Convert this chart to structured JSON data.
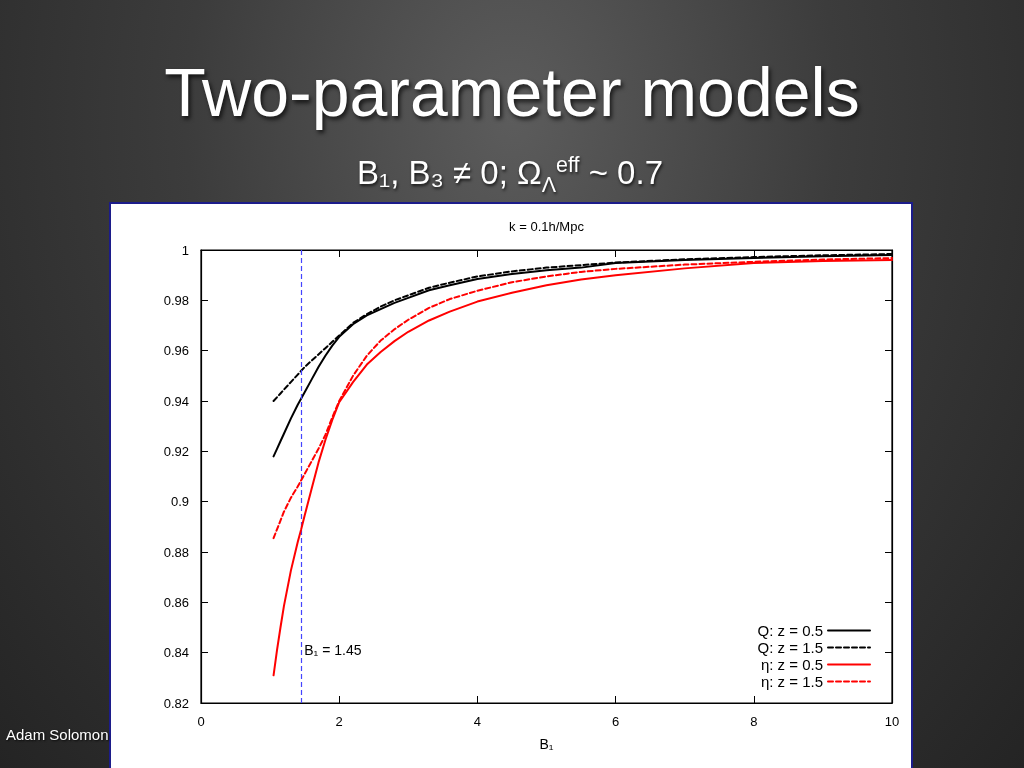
{
  "chart_data": {
    "type": "line",
    "title": "Two-parameter models",
    "subtitle": "B₁, B₃ ≠ 0; Ω$_{Λ}$$^{eff}$ ~ 0.7",
    "xlabel": "B₁",
    "annotations": [
      "k = 0.1h/Mpc",
      "Adam Solomon"
    ],
    "x": [
      1.05,
      1.1,
      1.15,
      1.2,
      1.3,
      1.4,
      1.45,
      1.5,
      1.6,
      1.7,
      1.8,
      1.9,
      2,
      2.2,
      2.4,
      2.6,
      2.8,
      3,
      3.3,
      3.6,
      4,
      4.5,
      5,
      5.5,
      6,
      7,
      8,
      9,
      10
    ],
    "series": [
      {
        "name": "Q: z = 0.5",
        "color": "#000000",
        "line_style": "solid",
        "values": [
          0.918,
          0.921,
          0.924,
          0.927,
          0.933,
          0.9385,
          0.941,
          0.9435,
          0.9485,
          0.9535,
          0.958,
          0.962,
          0.9655,
          0.9705,
          0.974,
          0.9765,
          0.979,
          0.981,
          0.984,
          0.986,
          0.9885,
          0.9905,
          0.992,
          0.993,
          0.9948,
          0.996,
          0.9968,
          0.9975,
          0.998
        ]
      },
      {
        "name": "Q: z = 1.5",
        "color": "#000000",
        "line_style": "dashed",
        "values": [
          0.94,
          0.9415,
          0.943,
          0.9445,
          0.9475,
          0.9505,
          0.952,
          0.9535,
          0.956,
          0.9585,
          0.961,
          0.9635,
          0.966,
          0.971,
          0.9745,
          0.9775,
          0.98,
          0.982,
          0.985,
          0.987,
          0.9895,
          0.9915,
          0.993,
          0.994,
          0.995,
          0.9963,
          0.9972,
          0.9979,
          0.9984
        ]
      },
      {
        "name": "η: z = 0.5",
        "color": "#ff0000",
        "line_style": "solid",
        "values": [
          0.831,
          0.841,
          0.85,
          0.8585,
          0.8725,
          0.884,
          0.889,
          0.8945,
          0.905,
          0.9155,
          0.9245,
          0.9325,
          0.9395,
          0.9475,
          0.9545,
          0.9595,
          0.9638,
          0.9675,
          0.972,
          0.9755,
          0.9795,
          0.983,
          0.986,
          0.9883,
          0.99,
          0.9927,
          0.9948,
          0.9956,
          0.996
        ]
      },
      {
        "name": "η: z = 1.5",
        "color": "#ff0000",
        "line_style": "dashed",
        "values": [
          0.8855,
          0.889,
          0.8925,
          0.896,
          0.9015,
          0.906,
          0.9085,
          0.911,
          0.916,
          0.921,
          0.9265,
          0.9335,
          0.94,
          0.95,
          0.958,
          0.964,
          0.9685,
          0.9723,
          0.977,
          0.9805,
          0.9838,
          0.9872,
          0.9895,
          0.9913,
          0.9925,
          0.9942,
          0.9953,
          0.9962,
          0.9968
        ]
      }
    ],
    "xlim": [
      0,
      10
    ],
    "xticks": [
      0,
      2,
      4,
      6,
      8,
      10
    ],
    "ylim": [
      0.82,
      1
    ],
    "yticks": [
      0.82,
      0.84,
      0.86,
      0.88,
      0.9,
      0.92,
      0.94,
      0.96,
      0.98,
      1
    ],
    "ref_lines": [
      {
        "axis": "x",
        "value": 1.45,
        "label": "B₁ = 1.45",
        "color": "#4444ff",
        "line_style": "dashed"
      }
    ],
    "legend": "bottom right",
    "marker": "none",
    "grid": false
  }
}
